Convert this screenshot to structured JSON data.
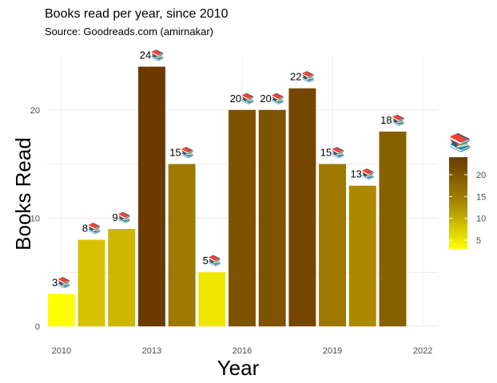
{
  "chart_data": {
    "type": "bar",
    "title": "Books read per year, since 2010",
    "subtitle": "Source: Goodreads.com (amirnakar)",
    "xlabel": "Year",
    "ylabel": "Books Read",
    "label_icon": "📚",
    "x": [
      2010,
      2011,
      2012,
      2013,
      2014,
      2015,
      2016,
      2017,
      2018,
      2019,
      2020,
      2021
    ],
    "values": [
      3,
      8,
      9,
      24,
      15,
      5,
      20,
      20,
      22,
      15,
      13,
      18
    ],
    "xlim": [
      2009.5,
      2022.5
    ],
    "ylim": [
      0,
      25
    ],
    "x_ticks": [
      2010,
      2013,
      2016,
      2019,
      2022
    ],
    "y_ticks": [
      0,
      10,
      20
    ],
    "grid": true,
    "legend": {
      "title": "📚",
      "position": "right",
      "ticks": [
        5,
        10,
        15,
        20
      ],
      "range": [
        3,
        24
      ],
      "low_color": "#ffff00",
      "high_color": "#6b3a00"
    }
  }
}
